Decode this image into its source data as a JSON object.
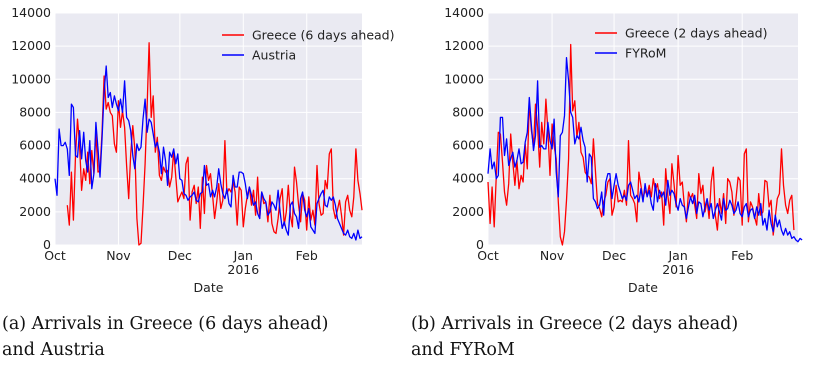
{
  "captions": {
    "a_line1": "(a) Arrivals in Greece (6 days ahead)",
    "a_line2": "and Austria",
    "b_line1": "(b) Arrivals in Greece (2 days ahead)",
    "b_line2": "and FYRoM"
  },
  "chart_data": [
    {
      "type": "line",
      "title": "",
      "xlabel": "Date",
      "ylabel": "",
      "x_start": "2015-10-01",
      "x_step": "1 day",
      "x_ticks": [
        "Oct",
        "Nov",
        "Dec",
        "Jan\n2016",
        "Feb"
      ],
      "x_range": [
        "2015-10-01",
        "2016-02-28"
      ],
      "ylim": [
        0,
        14000
      ],
      "y_ticks": [
        0,
        2000,
        4000,
        6000,
        8000,
        10000,
        12000,
        14000
      ],
      "grid": true,
      "legend_position": "top-right",
      "series": [
        {
          "name": "Greece (6 days ahead)",
          "color": "#ff0000",
          "start_day": 6,
          "values": [
            2400,
            1200,
            4400,
            1500,
            5400,
            7600,
            6000,
            3300,
            4600,
            3900,
            5600,
            3700,
            5700,
            4300,
            6800,
            4400,
            4500,
            6900,
            10200,
            8200,
            8600,
            8000,
            7800,
            6100,
            5600,
            8700,
            7100,
            8100,
            7100,
            4800,
            2800,
            5500,
            7200,
            5800,
            1600,
            0,
            100,
            2300,
            4900,
            8300,
            12200,
            7700,
            9000,
            5600,
            6500,
            4200,
            3900,
            4700,
            4400,
            4500,
            3500,
            4100,
            5700,
            4100,
            2600,
            2900,
            3200,
            2800,
            4900,
            5300,
            1500,
            3200,
            3600,
            2500,
            3500,
            1000,
            4100,
            1900,
            4800,
            3900,
            4300,
            3000,
            1600,
            2600,
            3700,
            2200,
            2700,
            6300,
            3100,
            3400,
            3200,
            3800,
            3200,
            1200,
            3500,
            3300,
            1100,
            2200,
            3000,
            3500,
            2400,
            3300,
            1800,
            4100,
            1600,
            3200,
            2500,
            2600,
            1400,
            3000,
            1300,
            800,
            700,
            1600,
            2800,
            3400,
            1200,
            2000,
            3600,
            1800,
            1100,
            4700,
            3800,
            2400,
            1400,
            3100,
            2700,
            900,
            2900,
            1500,
            2100,
            1200,
            4800,
            2500,
            1800,
            1900,
            3900,
            3400,
            5500,
            5800,
            2200,
            1600,
            2100,
            2700,
            1800,
            600,
            2600,
            3000,
            2100,
            1700,
            2900,
            5800,
            3900,
            3100,
            2100
          ]
        },
        {
          "name": "Austria",
          "color": "#0000ff",
          "start_day": 0,
          "values": [
            4000,
            3000,
            7000,
            6000,
            6000,
            6200,
            5800,
            4200,
            8500,
            8300,
            5400,
            5300,
            6900,
            5200,
            6800,
            5100,
            4400,
            6300,
            3400,
            4300,
            7400,
            5800,
            4100,
            6500,
            9200,
            10800,
            8900,
            9200,
            8300,
            9000,
            8500,
            8100,
            8800,
            8000,
            9900,
            7700,
            7500,
            6900,
            5400,
            4600,
            6100,
            5700,
            5900,
            7600,
            8800,
            6800,
            7600,
            7400,
            6700,
            5900,
            6200,
            5600,
            4300,
            5900,
            5100,
            3600,
            5600,
            5300,
            5800,
            4900,
            5500,
            4000,
            3900,
            3100,
            3000,
            2700,
            2900,
            3000,
            3200,
            2700,
            2600,
            3100,
            3200,
            4800,
            3600,
            3700,
            2900,
            3300,
            2900,
            3500,
            4600,
            3700,
            3100,
            2800,
            3400,
            2500,
            2300,
            4200,
            3500,
            3500,
            4400,
            4400,
            4300,
            3700,
            2800,
            3500,
            3000,
            2400,
            2600,
            1900,
            1600,
            3200,
            2800,
            2600,
            1800,
            2000,
            2600,
            2400,
            2100,
            3300,
            2000,
            1000,
            1400,
            900,
            600,
            2400,
            2600,
            1900,
            1700,
            1000,
            2800,
            3200,
            2100,
            1700,
            2200,
            1100,
            900,
            700,
            2500,
            2800,
            3100,
            3300,
            2400,
            2300,
            2900,
            2700,
            2900,
            2400,
            1600,
            1300,
            1000,
            700,
            600,
            900,
            500,
            400,
            700,
            300,
            900,
            400,
            500
          ]
        }
      ]
    },
    {
      "type": "line",
      "title": "",
      "xlabel": "Date",
      "ylabel": "",
      "x_start": "2015-10-01",
      "x_step": "1 day",
      "x_ticks": [
        "Oct",
        "Nov",
        "Dec",
        "Jan\n2016",
        "Feb"
      ],
      "x_range": [
        "2015-10-01",
        "2016-02-28"
      ],
      "ylim": [
        0,
        14000
      ],
      "y_ticks": [
        0,
        2000,
        4000,
        6000,
        8000,
        10000,
        12000,
        14000
      ],
      "grid": true,
      "legend_position": "top-right",
      "series": [
        {
          "name": "Greece (2 days ahead)",
          "color": "#ff0000",
          "start_day": 0,
          "values": [
            3800,
            1300,
            3500,
            1100,
            4200,
            6800,
            6700,
            5000,
            3200,
            2400,
            3700,
            6700,
            5000,
            3600,
            5100,
            3400,
            4200,
            3800,
            6100,
            4600,
            8600,
            6900,
            6000,
            8500,
            7100,
            4700,
            7400,
            6100,
            8800,
            6900,
            4200,
            7300,
            6000,
            5200,
            2600,
            500,
            0,
            800,
            2700,
            5200,
            12100,
            8100,
            8700,
            6500,
            7400,
            5600,
            5300,
            4400,
            4200,
            4100,
            3700,
            6400,
            4400,
            2500,
            2200,
            1700,
            2600,
            3000,
            3800,
            4000,
            1800,
            2300,
            3600,
            2600,
            2700,
            2600,
            3300,
            2400,
            6300,
            3000,
            2800,
            2500,
            1400,
            4400,
            3600,
            2800,
            3300,
            3000,
            3600,
            2900,
            4000,
            3300,
            3700,
            2800,
            3200,
            1200,
            4600,
            3000,
            1900,
            4900,
            3700,
            2300,
            5400,
            3600,
            3800,
            2400,
            1400,
            3200,
            2800,
            3100,
            2400,
            1600,
            4300,
            3100,
            3600,
            2000,
            2700,
            1600,
            3800,
            4700,
            1800,
            900,
            2800,
            1900,
            3100,
            1300,
            4000,
            3800,
            3200,
            1800,
            2800,
            4100,
            3900,
            1200,
            5500,
            5800,
            1400,
            2600,
            2300,
            1700,
            1200,
            3100,
            1800,
            2000,
            3900,
            3800,
            2300,
            2700,
            600,
            1700,
            2800,
            3100,
            5800,
            3600,
            2400,
            1900,
            2700,
            3000,
            900
          ]
        },
        {
          "name": "FYRoM",
          "color": "#0000ff",
          "start_day": 0,
          "values": [
            4300,
            5800,
            4600,
            5000,
            4000,
            4200,
            7700,
            7700,
            5400,
            6400,
            4800,
            5200,
            5600,
            4700,
            5100,
            5800,
            4900,
            5000,
            6200,
            6800,
            8900,
            7200,
            5700,
            6600,
            9900,
            5900,
            6000,
            5800,
            5800,
            7400,
            6300,
            5800,
            7600,
            4400,
            2900,
            6600,
            6800,
            7800,
            11300,
            9900,
            8000,
            7700,
            6100,
            6600,
            6400,
            7100,
            6300,
            5900,
            3800,
            5500,
            5300,
            2800,
            2600,
            2200,
            2400,
            3200,
            1800,
            3800,
            4300,
            4300,
            2800,
            3600,
            4300,
            3600,
            3200,
            2800,
            3000,
            2700,
            3600,
            3800,
            3300,
            2800,
            3000,
            2600,
            3400,
            2600,
            3700,
            2900,
            3300,
            2500,
            2100,
            3700,
            2600,
            3300,
            2900,
            3200,
            2400,
            3900,
            3000,
            3300,
            3100,
            2500,
            2100,
            2800,
            2400,
            2300,
            1600,
            2300,
            2900,
            2500,
            3000,
            1900,
            2600,
            2500,
            1700,
            2300,
            2800,
            2100,
            2500,
            1600,
            2100,
            2500,
            2000,
            1500,
            2800,
            2100,
            2200,
            2700,
            2400,
            1900,
            2100,
            2600,
            1900,
            1700,
            2300,
            2500,
            1700,
            2100,
            2200,
            1600,
            2300,
            1800,
            2500,
            1200,
            1600,
            900,
            2100,
            1300,
            800,
            1800,
            1100,
            1500,
            900,
            600,
            1000,
            600,
            800,
            400,
            500,
            300,
            200,
            400,
            300
          ]
        }
      ]
    }
  ]
}
